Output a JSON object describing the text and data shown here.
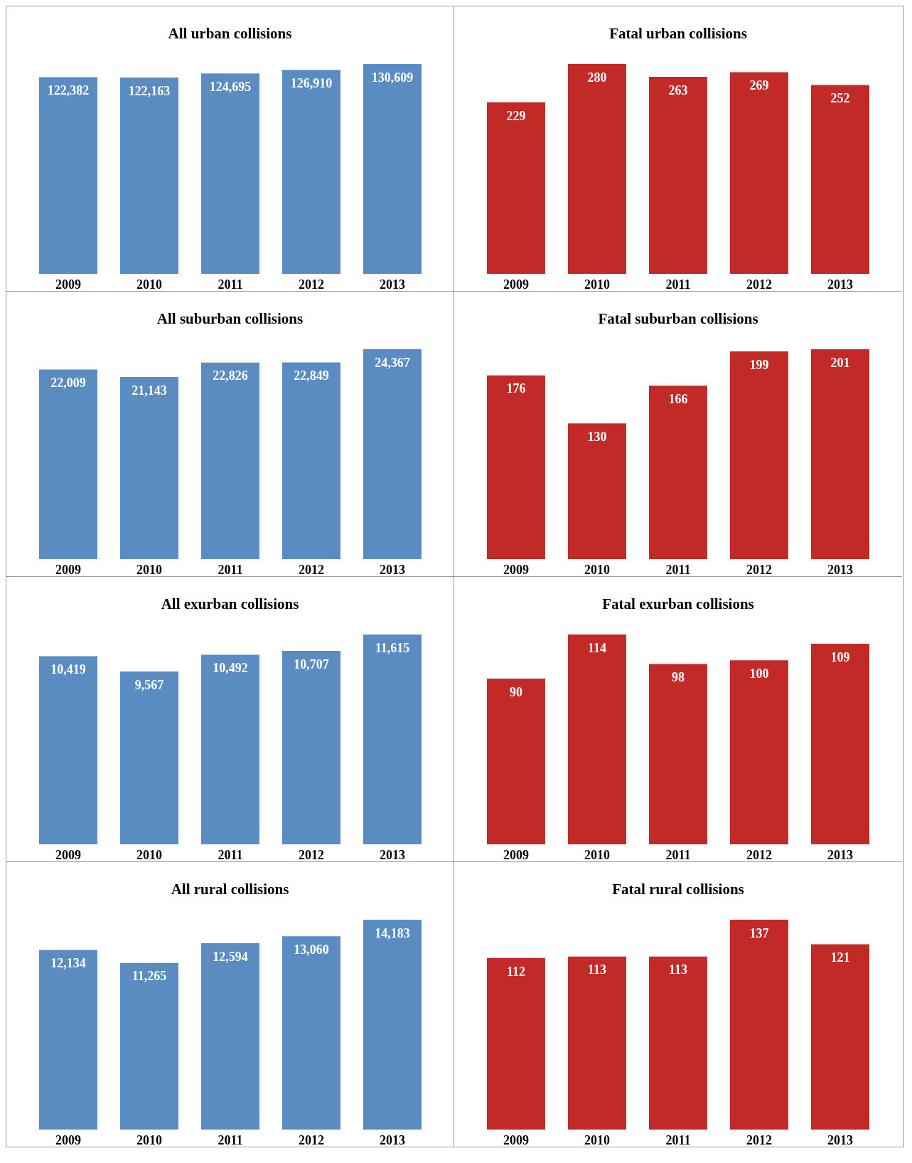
{
  "chart_data": [
    {
      "type": "bar",
      "title": "All urban collisions",
      "categories": [
        "2009",
        "2010",
        "2011",
        "2012",
        "2013"
      ],
      "values": [
        122382,
        122163,
        124695,
        126910,
        130609
      ],
      "color": "#5a8cc2",
      "value_labels": [
        "122,382",
        "122,163",
        "124,695",
        "126,910",
        "130,609"
      ]
    },
    {
      "type": "bar",
      "title": "Fatal urban collisions",
      "categories": [
        "2009",
        "2010",
        "2011",
        "2012",
        "2013"
      ],
      "values": [
        229,
        280,
        263,
        269,
        252
      ],
      "color": "#c12a27",
      "data_labels": true
    },
    {
      "type": "bar",
      "title": "All suburban collisions",
      "categories": [
        "2009",
        "2010",
        "2011",
        "2012",
        "2013"
      ],
      "values": [
        22009,
        21143,
        22826,
        22849,
        24367
      ],
      "color": "#5a8cc2",
      "value_labels": [
        "22,009",
        "21,143",
        "22,826",
        "22,849",
        "24,367"
      ]
    },
    {
      "type": "bar",
      "title": "Fatal suburban collisions",
      "categories": [
        "2009",
        "2010",
        "2011",
        "2012",
        "2013"
      ],
      "values": [
        176,
        130,
        166,
        199,
        201
      ],
      "color": "#c12a27",
      "data_labels": true
    },
    {
      "type": "bar",
      "title": "All exurban collisions",
      "categories": [
        "2009",
        "2010",
        "2011",
        "2012",
        "2013"
      ],
      "values": [
        10419,
        9567,
        10492,
        10707,
        11615
      ],
      "color": "#5a8cc2",
      "value_labels": [
        "10,419",
        "9,567",
        "10,492",
        "10,707",
        "11,615"
      ]
    },
    {
      "type": "bar",
      "title": "Fatal exurban collisions",
      "categories": [
        "2009",
        "2010",
        "2011",
        "2012",
        "2013"
      ],
      "values": [
        90,
        114,
        98,
        100,
        109
      ],
      "color": "#c12a27",
      "data_labels": true
    },
    {
      "type": "bar",
      "title": "All rural collisions",
      "categories": [
        "2009",
        "2010",
        "2011",
        "2012",
        "2013"
      ],
      "values": [
        12134,
        11265,
        12594,
        13060,
        14183
      ],
      "color": "#5a8cc2",
      "value_labels": [
        "12,134",
        "11,265",
        "12,594",
        "13,060",
        "14,183"
      ]
    },
    {
      "type": "bar",
      "title": "Fatal rural collisions",
      "categories": [
        "2009",
        "2010",
        "2011",
        "2012",
        "2013"
      ],
      "values": [
        112,
        113,
        113,
        137,
        121
      ],
      "color": "#c12a27",
      "data_labels": true
    }
  ]
}
